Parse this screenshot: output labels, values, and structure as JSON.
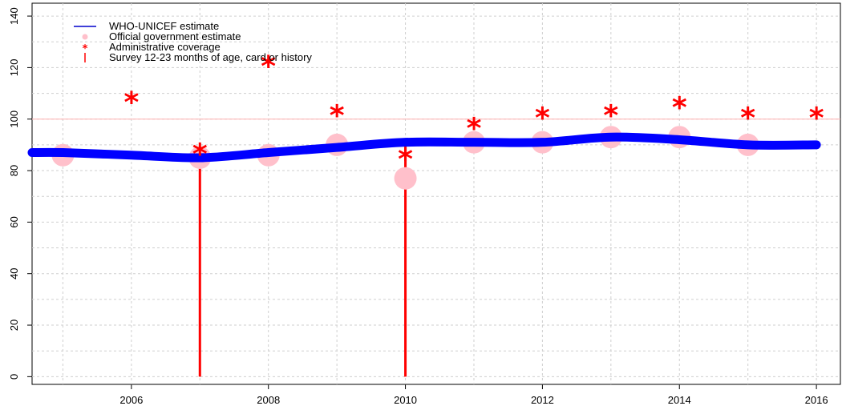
{
  "chart_data": {
    "type": "line",
    "title": "",
    "xlabel": "",
    "ylabel": "",
    "xlim": [
      2004.55,
      2016.35
    ],
    "ylim": [
      -3,
      145
    ],
    "x_ticks": [
      2006,
      2008,
      2010,
      2012,
      2014,
      2016
    ],
    "x_tick_labels": [
      "2006",
      "2008",
      "2010",
      "2012",
      "2014",
      "2016"
    ],
    "y_ticks": [
      0,
      20,
      40,
      60,
      80,
      100,
      120,
      140
    ],
    "y_tick_labels": [
      "0",
      "20",
      "40",
      "60",
      "80",
      "100",
      "120",
      "140"
    ],
    "grid": true,
    "reference_line": 100,
    "legend_position": "top-left",
    "legend": [
      {
        "label": "WHO-UNICEF estimate",
        "symbol": "line",
        "color": "#0000cc"
      },
      {
        "label": "Official government estimate",
        "symbol": "dot",
        "color": "#ffc0cb"
      },
      {
        "label": "Administrative coverage",
        "symbol": "star",
        "color": "#ff0000"
      },
      {
        "label": "Survey 12-23 months of age, card or history",
        "symbol": "bar",
        "color": "#ff0000"
      }
    ],
    "series": [
      {
        "name": "WHO-UNICEF estimate",
        "color": "#0000ff",
        "x": [
          2004.55,
          2005,
          2006,
          2007,
          2008,
          2009,
          2010,
          2011,
          2012,
          2013,
          2014,
          2015,
          2016
        ],
        "values": [
          87,
          87,
          86,
          85,
          87,
          89,
          91,
          91,
          91,
          93,
          92,
          90,
          90
        ]
      },
      {
        "name": "Official government estimate",
        "color": "#ffc0cb",
        "x": [
          2005,
          2007,
          2008,
          2009,
          2010,
          2011,
          2012,
          2013,
          2014,
          2015
        ],
        "values": [
          86,
          85,
          86,
          90,
          77,
          91,
          91,
          93,
          93,
          90
        ]
      },
      {
        "name": "Administrative coverage",
        "color": "#ff0000",
        "x": [
          2006,
          2007,
          2008,
          2009,
          2010,
          2011,
          2012,
          2013,
          2014,
          2015,
          2016
        ],
        "values": [
          107,
          87,
          121,
          102,
          85,
          97,
          101,
          102,
          105,
          101,
          101
        ]
      },
      {
        "name": "Survey 12-23 months of age, card or history",
        "color": "#ff0000",
        "x": [
          2007,
          2010
        ],
        "values": [
          87,
          90
        ]
      }
    ]
  }
}
